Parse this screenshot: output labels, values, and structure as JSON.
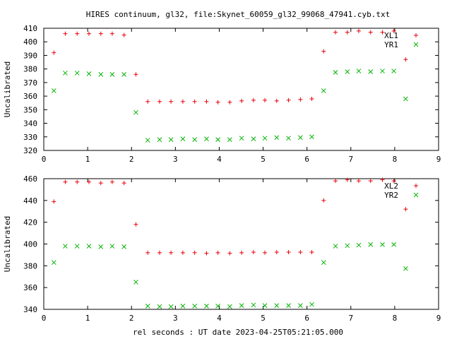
{
  "title": "HIRES continuum, gl32, file:Skynet_60059_gl32_99068_47941.cyb.txt",
  "xlabel": "rel seconds : UT date 2023-04-25T05:21:05.000",
  "colors": {
    "red": "#e8000b",
    "green": "#00b400"
  },
  "chart_data": [
    {
      "type": "scatter",
      "ylabel": "Uncalibrated",
      "xlim": [
        0,
        9
      ],
      "ylim": [
        320,
        410
      ],
      "xticks": [
        0,
        1,
        2,
        3,
        4,
        5,
        6,
        7,
        8,
        9
      ],
      "yticks": [
        320,
        330,
        340,
        350,
        360,
        370,
        380,
        390,
        400,
        410
      ],
      "legend": "top-right",
      "series": [
        {
          "name": "XL1",
          "marker": "plus",
          "color": "#e8000b",
          "x": [
            0.23,
            0.49,
            0.76,
            1.03,
            1.3,
            1.56,
            1.83,
            2.1,
            2.37,
            2.64,
            2.9,
            3.17,
            3.44,
            3.71,
            3.97,
            4.24,
            4.51,
            4.78,
            5.04,
            5.31,
            5.58,
            5.85,
            6.11,
            6.38,
            6.65,
            6.92,
            7.18,
            7.45,
            7.72,
            7.98,
            8.25
          ],
          "y": [
            392,
            406,
            406,
            406,
            406,
            406,
            405,
            376,
            356,
            356,
            356,
            356,
            356,
            356,
            355.5,
            355.5,
            356.5,
            357,
            357,
            356.5,
            357,
            357.5,
            358,
            393,
            407,
            407,
            408,
            407,
            407,
            408,
            387
          ]
        },
        {
          "name": "YR1",
          "marker": "cross",
          "color": "#00b400",
          "x": [
            0.23,
            0.49,
            0.76,
            1.03,
            1.3,
            1.56,
            1.83,
            2.1,
            2.37,
            2.64,
            2.9,
            3.17,
            3.44,
            3.71,
            3.97,
            4.24,
            4.51,
            4.78,
            5.04,
            5.31,
            5.58,
            5.85,
            6.11,
            6.38,
            6.65,
            6.92,
            7.18,
            7.45,
            7.72,
            7.98,
            8.25
          ],
          "y": [
            364,
            377,
            377,
            376.5,
            376,
            376,
            376,
            348,
            327.5,
            328,
            328,
            328.5,
            328,
            328.5,
            328,
            328,
            329,
            328.5,
            329,
            329.5,
            329,
            329.5,
            330,
            364,
            377.5,
            378,
            378.5,
            378,
            378.5,
            378.5,
            358
          ]
        }
      ]
    },
    {
      "type": "scatter",
      "ylabel": "Uncalibrated",
      "xlim": [
        0,
        9
      ],
      "ylim": [
        340,
        460
      ],
      "xticks": [
        0,
        1,
        2,
        3,
        4,
        5,
        6,
        7,
        8,
        9
      ],
      "yticks": [
        340,
        360,
        380,
        400,
        420,
        440,
        460
      ],
      "legend": "top-right",
      "series": [
        {
          "name": "XL2",
          "marker": "plus",
          "color": "#e8000b",
          "x": [
            0.23,
            0.49,
            0.76,
            1.03,
            1.3,
            1.56,
            1.83,
            2.1,
            2.37,
            2.64,
            2.9,
            3.17,
            3.44,
            3.71,
            3.97,
            4.24,
            4.51,
            4.78,
            5.04,
            5.31,
            5.58,
            5.85,
            6.11,
            6.38,
            6.65,
            6.92,
            7.18,
            7.45,
            7.72,
            7.98,
            8.25
          ],
          "y": [
            439,
            457,
            457,
            457,
            456,
            457,
            456,
            418,
            392,
            392,
            392,
            392,
            392,
            391.5,
            392,
            391.5,
            392,
            392.5,
            392,
            392.5,
            392.5,
            392.5,
            392.5,
            440,
            458,
            459,
            458,
            458,
            459,
            458,
            432
          ]
        },
        {
          "name": "YR2",
          "marker": "cross",
          "color": "#00b400",
          "x": [
            0.23,
            0.49,
            0.76,
            1.03,
            1.3,
            1.56,
            1.83,
            2.1,
            2.37,
            2.64,
            2.9,
            3.17,
            3.44,
            3.71,
            3.97,
            4.24,
            4.51,
            4.78,
            5.04,
            5.31,
            5.58,
            5.85,
            6.11,
            6.38,
            6.65,
            6.92,
            7.18,
            7.45,
            7.72,
            7.98,
            8.25
          ],
          "y": [
            383,
            398,
            398,
            398,
            397.5,
            398,
            397.5,
            365,
            343,
            342.5,
            342.5,
            343,
            343,
            343,
            343,
            342.5,
            343.5,
            344,
            343.5,
            343.5,
            343.5,
            343.5,
            344.5,
            383,
            398,
            398.5,
            399,
            399.5,
            399.5,
            399.5,
            377.5
          ]
        }
      ]
    }
  ]
}
